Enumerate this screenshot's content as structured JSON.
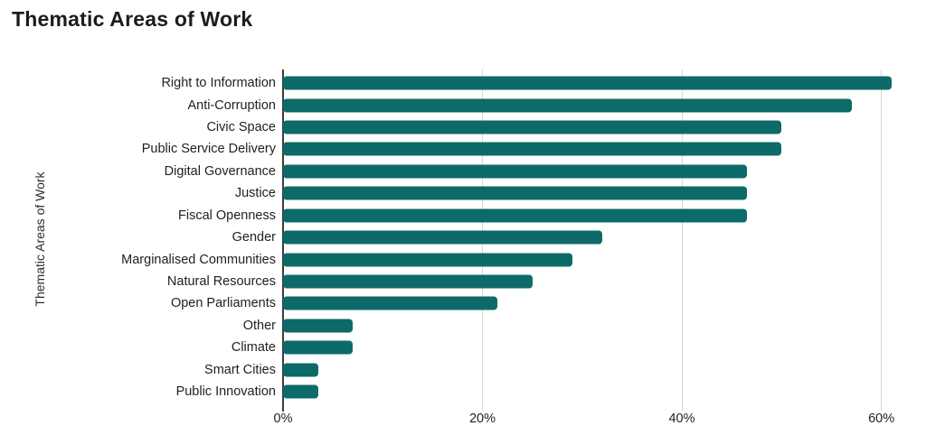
{
  "title": "Thematic Areas of Work",
  "chart_data": {
    "type": "bar",
    "orientation": "horizontal",
    "title": "Thematic Areas of Work",
    "xlabel": "",
    "ylabel": "Thematic Areas of Work",
    "categories": [
      "Right to Information",
      "Anti-Corruption",
      "Civic Space",
      "Public Service Delivery",
      "Digital Governance",
      "Justice",
      "Fiscal Openness",
      "Gender",
      "Marginalised Communities",
      "Natural Resources",
      "Open Parliaments",
      "Other",
      "Climate",
      "Smart Cities",
      "Public Innovation"
    ],
    "values": [
      61,
      57,
      50,
      50,
      46.5,
      46.5,
      46.5,
      32,
      29,
      25,
      21.5,
      7,
      7,
      3.5,
      3.5
    ],
    "value_unit": "%",
    "xlim": [
      0,
      61.4
    ],
    "x_ticks": [
      "0%",
      "20%",
      "40%",
      "60%"
    ],
    "x_tick_values": [
      0,
      20,
      40,
      60
    ],
    "grid": "vertical-gridlines",
    "legend": "none",
    "bar_color": "#0C6B68",
    "axis_color": "#3C3C3C",
    "gridline_color": "#D8D8D8",
    "text_color": "#1F1F1F"
  }
}
